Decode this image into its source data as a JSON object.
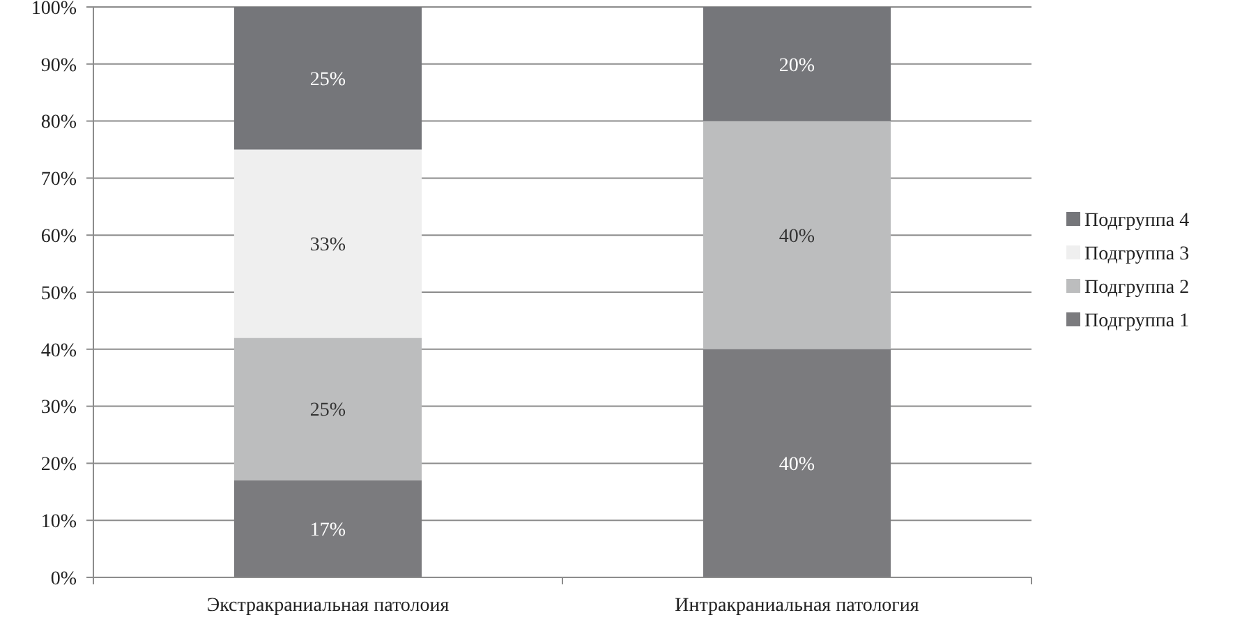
{
  "chart_data": {
    "type": "bar",
    "stacked": true,
    "categories": [
      "Экстракраниальная патолоия",
      "Интракраниальная патология"
    ],
    "series": [
      {
        "name": "Подгруппа 1",
        "color": "#7b7b7e",
        "values": [
          17,
          40
        ],
        "value_labels": [
          "17%",
          "40%"
        ]
      },
      {
        "name": "Подгруппа 2",
        "color": "#bcbdbe",
        "values": [
          25,
          40
        ],
        "value_labels": [
          "25%",
          "40%"
        ]
      },
      {
        "name": "Подгруппа 3",
        "color": "#efefef",
        "values": [
          33,
          null
        ],
        "value_labels": [
          "33%",
          null
        ]
      },
      {
        "name": "Подгруппа 4",
        "color": "#75767a",
        "values": [
          25,
          20
        ],
        "value_labels": [
          "25%",
          "20%"
        ]
      }
    ],
    "ylim": [
      0,
      100
    ],
    "yticks": [
      {
        "value": 0,
        "label": "0%"
      },
      {
        "value": 10,
        "label": "10%"
      },
      {
        "value": 20,
        "label": "20%"
      },
      {
        "value": 30,
        "label": "30%"
      },
      {
        "value": 40,
        "label": "40%"
      },
      {
        "value": 50,
        "label": "50%"
      },
      {
        "value": 60,
        "label": "60%"
      },
      {
        "value": 70,
        "label": "70%"
      },
      {
        "value": 80,
        "label": "80%"
      },
      {
        "value": 90,
        "label": "90%"
      },
      {
        "value": 100,
        "label": "100%"
      }
    ],
    "grid": "y",
    "legend": "right"
  }
}
